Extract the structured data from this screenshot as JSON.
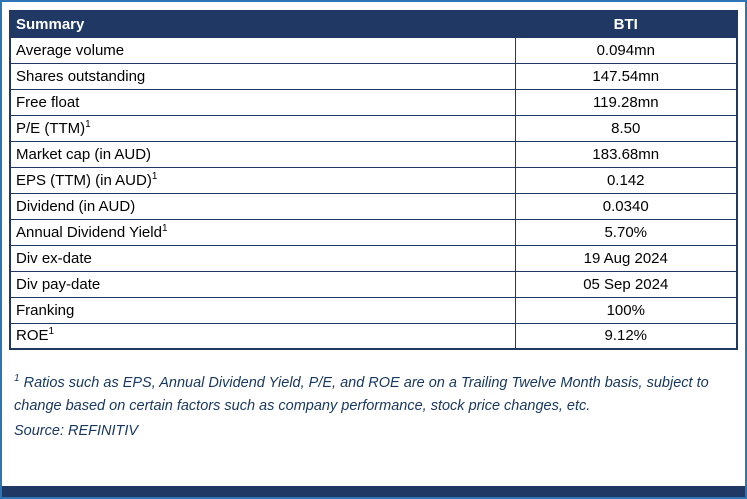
{
  "header": {
    "summary_label": "Summary",
    "ticker": "BTI"
  },
  "table": {
    "rows": [
      {
        "label": "Average volume",
        "value": "0.094mn"
      },
      {
        "label": "Shares outstanding",
        "value": "147.54mn"
      },
      {
        "label": "Free float",
        "value": "119.28mn"
      },
      {
        "label": "P/E (TTM)",
        "sup": "1",
        "value": "8.50"
      },
      {
        "label": "Market cap (in AUD)",
        "value": "183.68mn"
      },
      {
        "label": "EPS (TTM) (in AUD)",
        "sup": "1",
        "value": "0.142"
      },
      {
        "label": "Dividend (in AUD)",
        "value": "0.0340"
      },
      {
        "label": "Annual Dividend Yield",
        "sup": "1",
        "value": "5.70%"
      },
      {
        "label": "Div ex-date",
        "value": "19 Aug 2024"
      },
      {
        "label": "Div pay-date",
        "value": "05 Sep 2024"
      },
      {
        "label": "Franking",
        "value": "100%"
      },
      {
        "label": "ROE",
        "sup": "1",
        "value": "9.12%"
      }
    ]
  },
  "footnote": {
    "sup": "1",
    "text": " Ratios such as EPS, Annual Dividend Yield, P/E, and ROE are on a Trailing Twelve Month basis, subject to change based on certain factors such as company performance, stock price changes, etc.",
    "source": "Source: REFINITIV"
  },
  "colors": {
    "navy": "#1F3864",
    "outer_border_blue": "#2E75B6"
  }
}
